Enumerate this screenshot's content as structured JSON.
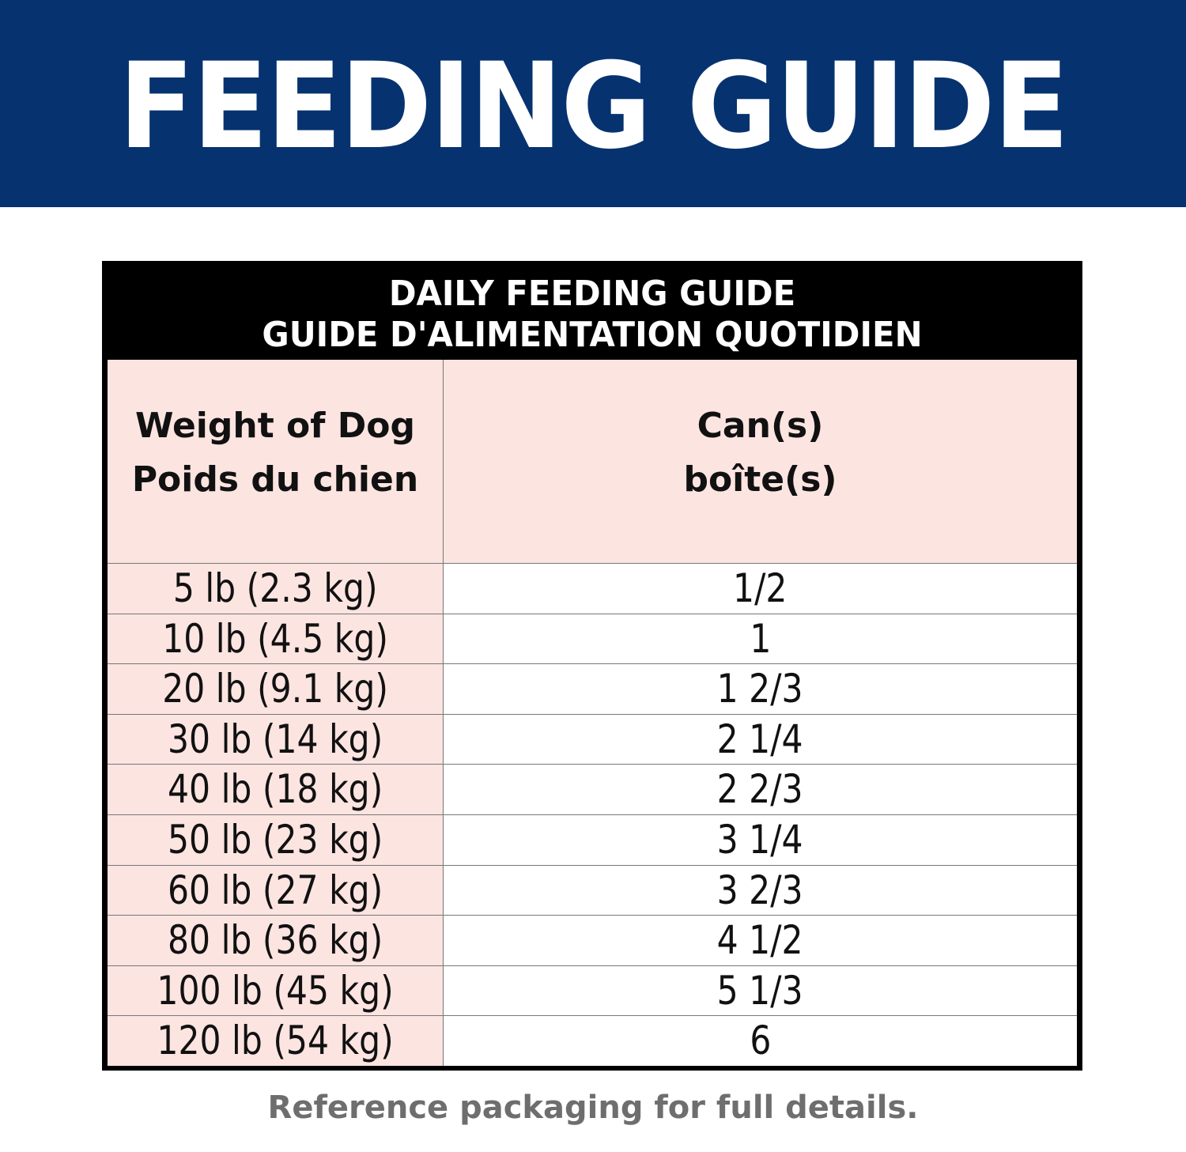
{
  "banner": {
    "title": "FEEDING GUIDE",
    "background_color": "#06336f"
  },
  "table": {
    "title_line1": "DAILY FEEDING GUIDE",
    "title_line2": "GUIDE D'ALIMENTATION QUOTIDIEN",
    "header": {
      "weight_en": "Weight of Dog",
      "weight_fr": "Poids du chien",
      "cans_en": "Can(s)",
      "cans_fr": "boîte(s)"
    },
    "rows": [
      {
        "weight": "5 lb (2.3 kg)",
        "cans": "1/2"
      },
      {
        "weight": "10 lb (4.5 kg)",
        "cans": "1"
      },
      {
        "weight": "20 lb (9.1 kg)",
        "cans": "1 2/3"
      },
      {
        "weight": "30 lb (14 kg)",
        "cans": "2 1/4"
      },
      {
        "weight": "40 lb (18 kg)",
        "cans": "2 2/3"
      },
      {
        "weight": "50 lb (23 kg)",
        "cans": "3 1/4"
      },
      {
        "weight": "60 lb (27 kg)",
        "cans": "3 2/3"
      },
      {
        "weight": "80 lb (36 kg)",
        "cans": "4 1/2"
      },
      {
        "weight": "100 lb (45 kg)",
        "cans": "5 1/3"
      },
      {
        "weight": "120 lb (54 kg)",
        "cans": "6"
      }
    ],
    "weight_column_color": "#fce4e1"
  },
  "footer": {
    "note": "Reference packaging for full details."
  }
}
